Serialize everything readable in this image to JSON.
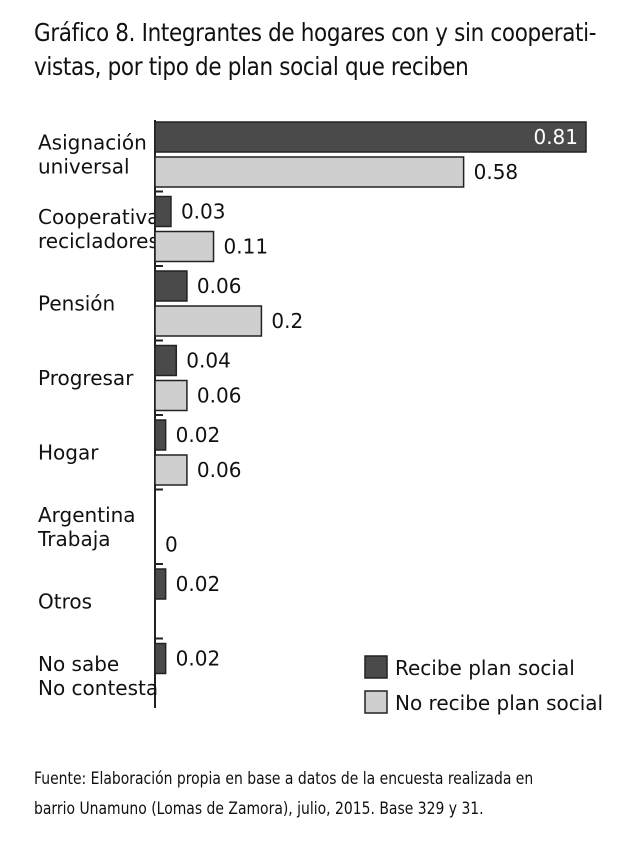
{
  "chart_data": {
    "type": "bar",
    "orientation": "horizontal",
    "title_lines": [
      "Gráfico 8. Integrantes de hogares con y sin cooperati-",
      "vistas, por tipo de plan social que reciben"
    ],
    "categories": [
      [
        "Asignación",
        "universal"
      ],
      [
        "Cooperativas",
        "recicladores"
      ],
      [
        "Pensión"
      ],
      [
        "Progresar"
      ],
      [
        "Hogar"
      ],
      [
        "Argentina",
        "Trabaja"
      ],
      [
        "Otros"
      ],
      [
        "No sabe",
        "No contesta"
      ]
    ],
    "series": [
      {
        "name": "Recibe plan social",
        "color": "#4a4a4a",
        "values": [
          0.81,
          0.03,
          0.06,
          0.04,
          0.02,
          null,
          0.02,
          0.02
        ],
        "labels": [
          "0.81",
          "0.03",
          "0.06",
          "0.04",
          "0.02",
          "",
          "0.02",
          "0.02"
        ]
      },
      {
        "name": "No recibe plan social",
        "color": "#cfcfcf",
        "values": [
          0.58,
          0.11,
          0.2,
          0.06,
          0.06,
          0,
          null,
          null
        ],
        "labels": [
          "0.58",
          "0.11",
          "0.2",
          "0.06",
          "0.06",
          "0",
          "",
          ""
        ]
      }
    ],
    "xlim": [
      0,
      0.81
    ],
    "grid": false,
    "legend_position": "bottom-right"
  },
  "source_lines": [
    "Fuente: Elaboración propia en base a datos de la encuesta realizada en",
    "barrio Unamuno (Lomas de Zamora), julio, 2015. Base 329 y 31."
  ]
}
